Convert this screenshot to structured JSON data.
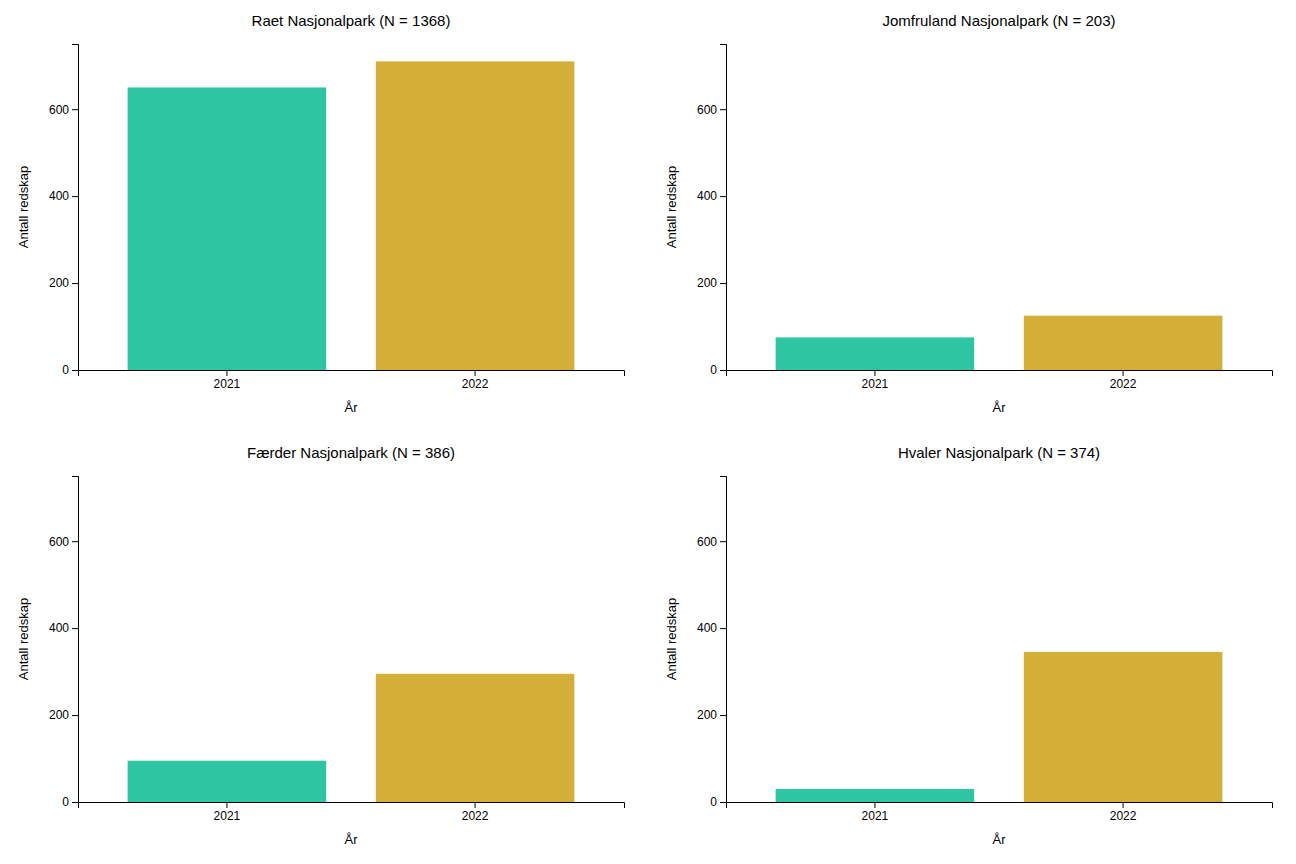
{
  "chart_data": [
    {
      "type": "bar",
      "title": "Raet Nasjonalpark (N = 1368)",
      "categories": [
        "2021",
        "2022"
      ],
      "values": [
        650,
        710
      ],
      "colors": [
        "#2DC5A2",
        "#D4AF37"
      ],
      "xlabel": "År",
      "ylabel": "Antall redskap",
      "ylim": [
        0,
        750
      ],
      "yticks": [
        0,
        200,
        400,
        600
      ],
      "grid": false
    },
    {
      "type": "bar",
      "title": "Jomfruland Nasjonalpark (N = 203)",
      "categories": [
        "2021",
        "2022"
      ],
      "values": [
        75,
        125
      ],
      "colors": [
        "#2DC5A2",
        "#D4AF37"
      ],
      "xlabel": "År",
      "ylabel": "Antall redskap",
      "ylim": [
        0,
        750
      ],
      "yticks": [
        0,
        200,
        400,
        600
      ],
      "grid": false
    },
    {
      "type": "bar",
      "title": "Færder Nasjonalpark (N = 386)",
      "categories": [
        "2021",
        "2022"
      ],
      "values": [
        95,
        295
      ],
      "colors": [
        "#2DC5A2",
        "#D4AF37"
      ],
      "xlabel": "År",
      "ylabel": "Antall redskap",
      "ylim": [
        0,
        750
      ],
      "yticks": [
        0,
        200,
        400,
        600
      ],
      "grid": false
    },
    {
      "type": "bar",
      "title": "Hvaler Nasjonalpark (N = 374)",
      "categories": [
        "2021",
        "2022"
      ],
      "values": [
        30,
        345
      ],
      "colors": [
        "#2DC5A2",
        "#D4AF37"
      ],
      "xlabel": "År",
      "ylabel": "Antall redskap",
      "ylim": [
        0,
        750
      ],
      "yticks": [
        0,
        200,
        400,
        600
      ],
      "grid": false
    }
  ]
}
